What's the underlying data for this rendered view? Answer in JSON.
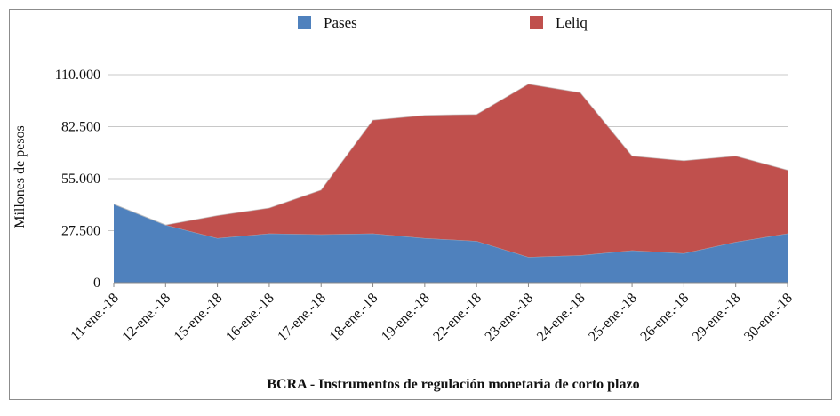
{
  "chart_data": {
    "type": "area",
    "stacked": true,
    "title": "BCRA - Instrumentos de regulación monetaria de corto plazo",
    "ylabel": "Millones de pesos",
    "xlabel": "",
    "categories": [
      "11-ene.-18",
      "12-ene.-18",
      "15-ene.-18",
      "16-ene.-18",
      "17-ene.-18",
      "18-ene.-18",
      "19-ene.-18",
      "22-ene.-18",
      "23-ene.-18",
      "24-ene.-18",
      "25-ene.-18",
      "26-ene.-18",
      "29-ene.-18",
      "30-ene.-18"
    ],
    "ylim": [
      0,
      110000
    ],
    "yticks": [
      "0",
      "27.500",
      "55.000",
      "82.500",
      "110.000"
    ],
    "legend_position": "top",
    "grid": true,
    "series": [
      {
        "name": "Pases",
        "color": "#4f81bd",
        "values": [
          41500,
          30500,
          23500,
          26000,
          25500,
          26000,
          23500,
          22000,
          13500,
          14500,
          17000,
          15500,
          21500,
          26000
        ]
      },
      {
        "name": "Leliq",
        "color": "#c0504d",
        "values": [
          0,
          0,
          12000,
          13500,
          23500,
          60000,
          65000,
          67000,
          91500,
          86000,
          50000,
          49000,
          45500,
          33500
        ]
      }
    ]
  }
}
